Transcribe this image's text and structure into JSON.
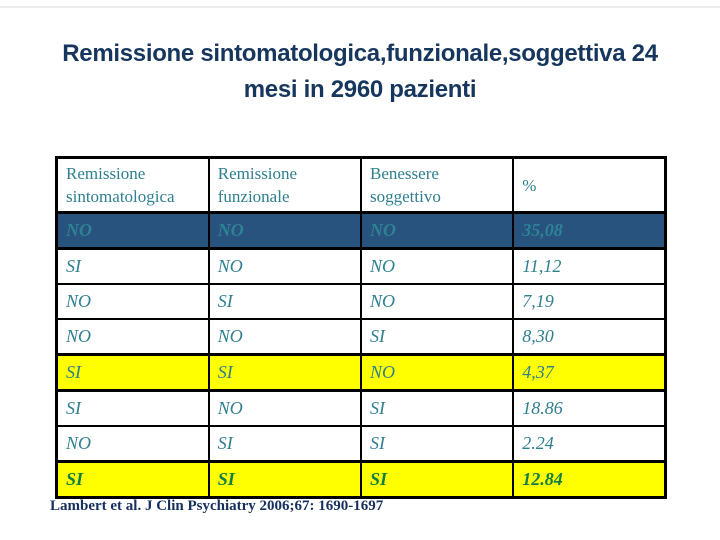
{
  "slide": {
    "title_line1": "Remissione sintomatologica,funzionale,soggettiva 24",
    "title_line2": "mesi in 2960 pazienti",
    "citation": "Lambert et al. J Clin Psychiatry 2006;67: 1690-1697"
  },
  "table": {
    "headers": [
      "Remissione sintomatologica",
      "Remissione funzionale",
      "Benessere soggettivo",
      "%"
    ],
    "rows": [
      {
        "cells": [
          "NO",
          "NO",
          "NO",
          "35,08"
        ],
        "highlight": "navy"
      },
      {
        "cells": [
          "SI",
          "NO",
          "NO",
          "11,12"
        ],
        "highlight": "none"
      },
      {
        "cells": [
          "NO",
          "SI",
          "NO",
          "7,19"
        ],
        "highlight": "none"
      },
      {
        "cells": [
          "NO",
          "NO",
          "SI",
          "8,30"
        ],
        "highlight": "none"
      },
      {
        "cells": [
          "SI",
          "SI",
          "NO",
          "4,37"
        ],
        "highlight": "yellow"
      },
      {
        "cells": [
          "SI",
          "NO",
          "SI",
          "18.86"
        ],
        "highlight": "none"
      },
      {
        "cells": [
          "NO",
          "SI",
          "SI",
          "2.24"
        ],
        "highlight": "none"
      },
      {
        "cells": [
          "SI",
          "SI",
          "SI",
          "12.84"
        ],
        "highlight": "yellow-bold"
      }
    ]
  },
  "colors": {
    "title_navy": "#17365d",
    "header_teal": "#2e7f90",
    "row_navy_bg": "#27537e",
    "row_yellow_bg": "#ffff00",
    "final_row_green": "#0f7f46",
    "border_black": "#000000"
  }
}
